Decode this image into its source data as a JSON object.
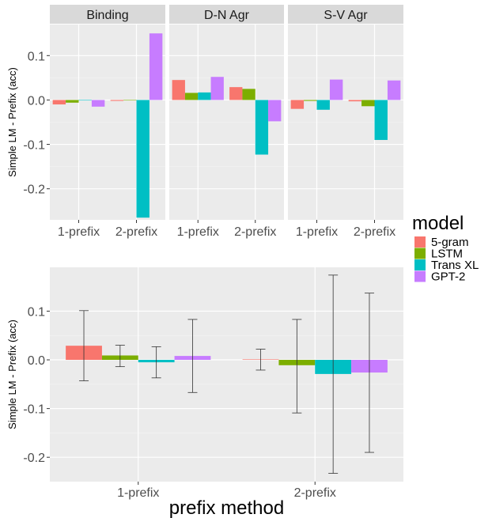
{
  "legend": {
    "title": "model",
    "placement": "right",
    "items": [
      {
        "label": "5-gram",
        "color": "#F8766D"
      },
      {
        "label": "LSTM",
        "color": "#7CAE00"
      },
      {
        "label": "Trans XL",
        "color": "#00BFC4"
      },
      {
        "label": "GPT-2",
        "color": "#C77CFF"
      }
    ]
  },
  "chart_data": [
    {
      "type": "bar",
      "layout": "faceted",
      "ylabel": "Simple LM - Prefix (acc)",
      "xlabel": "",
      "ylim": [
        -0.27,
        0.17
      ],
      "yticks": [
        0.1,
        0.0,
        -0.1,
        -0.2
      ],
      "ytick_labels": [
        "0.1",
        "0.0",
        "-0.1",
        "-0.2"
      ],
      "categories": [
        "1-prefix",
        "2-prefix"
      ],
      "grid": true,
      "facets": [
        {
          "label": "Binding",
          "series": [
            {
              "name": "5-gram",
              "values": [
                -0.01,
                -0.002
              ]
            },
            {
              "name": "LSTM",
              "values": [
                -0.006,
                -0.001
              ]
            },
            {
              "name": "Trans XL",
              "values": [
                -0.001,
                -0.265
              ]
            },
            {
              "name": "GPT-2",
              "values": [
                -0.015,
                0.15
              ]
            }
          ]
        },
        {
          "label": "D-N Agr",
          "series": [
            {
              "name": "5-gram",
              "values": [
                0.045,
                0.029
              ]
            },
            {
              "name": "LSTM",
              "values": [
                0.016,
                0.025
              ]
            },
            {
              "name": "Trans XL",
              "values": [
                0.017,
                -0.123
              ]
            },
            {
              "name": "GPT-2",
              "values": [
                0.052,
                -0.048
              ]
            }
          ]
        },
        {
          "label": "S-V Agr",
          "series": [
            {
              "name": "5-gram",
              "values": [
                -0.02,
                -0.003
              ]
            },
            {
              "name": "LSTM",
              "values": [
                -0.002,
                -0.014
              ]
            },
            {
              "name": "Trans XL",
              "values": [
                -0.022,
                -0.09
              ]
            },
            {
              "name": "GPT-2",
              "values": [
                0.046,
                0.044
              ]
            }
          ]
        }
      ]
    },
    {
      "type": "bar",
      "ylabel": "Simple LM - Prefix (acc)",
      "xlabel": "prefix method",
      "ylim": [
        -0.25,
        0.19
      ],
      "yticks": [
        0.1,
        0.0,
        -0.1,
        -0.2
      ],
      "ytick_labels": [
        "0.1",
        "0.0",
        "-0.1",
        "-0.2"
      ],
      "categories": [
        "1-prefix",
        "2-prefix"
      ],
      "grid": true,
      "series": [
        {
          "name": "5-gram",
          "values": [
            0.029,
            0.001
          ],
          "error_low": [
            -0.043,
            -0.021
          ],
          "error_high": [
            0.101,
            0.022
          ]
        },
        {
          "name": "LSTM",
          "values": [
            0.009,
            -0.011
          ],
          "error_low": [
            -0.014,
            -0.109
          ],
          "error_high": [
            0.03,
            0.083
          ]
        },
        {
          "name": "Trans XL",
          "values": [
            -0.005,
            -0.029
          ],
          "error_low": [
            -0.037,
            -0.233
          ],
          "error_high": [
            0.027,
            0.174
          ]
        },
        {
          "name": "GPT-2",
          "values": [
            0.008,
            -0.026
          ],
          "error_low": [
            -0.067,
            -0.19
          ],
          "error_high": [
            0.083,
            0.137
          ]
        }
      ]
    }
  ]
}
